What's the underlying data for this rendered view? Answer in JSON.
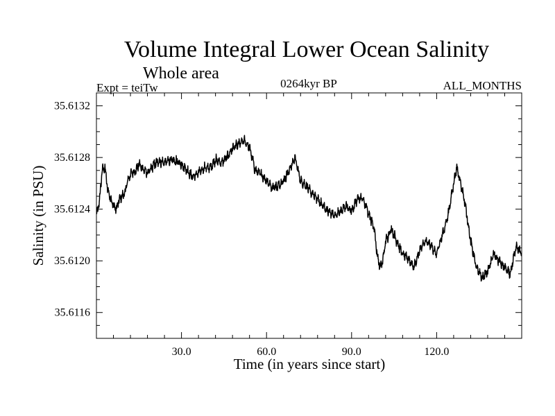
{
  "chart_data": {
    "type": "line",
    "title": "Volume Integral Lower Ocean Salinity",
    "subtitle": "Whole area",
    "experiment": "Expt = teiTw",
    "period": "0264kyr BP",
    "months": "ALL_MONTHS",
    "xlabel": "Time (in years since start)",
    "ylabel": "Salinity (in PSU)",
    "xlim": [
      0,
      150
    ],
    "ylim": [
      35.6114,
      35.6133
    ],
    "x_ticks": [
      30,
      60,
      90,
      120
    ],
    "x_tick_labels": [
      "30.0",
      "60.0",
      "90.0",
      "120.0"
    ],
    "y_ticks": [
      35.6116,
      35.612,
      35.6124,
      35.6128,
      35.6132
    ],
    "y_tick_labels": [
      "35.6116",
      "35.6120",
      "35.6124",
      "35.6128",
      "35.6132"
    ],
    "grid": false,
    "series": [
      {
        "name": "Salinity",
        "color": "#000000",
        "anchors": {
          "x": [
            0,
            1,
            2,
            3,
            4,
            5,
            6,
            7,
            8,
            9,
            10,
            11,
            12,
            13,
            14,
            15,
            16,
            17,
            18,
            19,
            20,
            22,
            24,
            26,
            28,
            30,
            32,
            34,
            36,
            38,
            40,
            42,
            44,
            46,
            48,
            50,
            52,
            54,
            56,
            58,
            60,
            62,
            64,
            66,
            68,
            70,
            72,
            74,
            76,
            78,
            80,
            82,
            84,
            86,
            88,
            90,
            92,
            94,
            96,
            98,
            99,
            100,
            101,
            102,
            104,
            106,
            108,
            110,
            112,
            114,
            116,
            118,
            120,
            122,
            124,
            126,
            127,
            128,
            130,
            132,
            134,
            136,
            138,
            140,
            142,
            144,
            146,
            148,
            150
          ],
          "y": [
            35.61235,
            35.61245,
            35.6127,
            35.61272,
            35.61255,
            35.61248,
            35.61243,
            35.6124,
            35.61247,
            35.6125,
            35.61252,
            35.61262,
            35.61267,
            35.61269,
            35.6127,
            35.61275,
            35.61272,
            35.6127,
            35.61268,
            35.6127,
            35.61274,
            35.61277,
            35.61276,
            35.61278,
            35.61277,
            35.61275,
            35.6127,
            35.61265,
            35.61268,
            35.61272,
            35.61272,
            35.61278,
            35.61276,
            35.6128,
            35.61287,
            35.6129,
            35.61293,
            35.61288,
            35.6127,
            35.61267,
            35.61262,
            35.61257,
            35.61258,
            35.61262,
            35.6127,
            35.6128,
            35.61262,
            35.61258,
            35.61252,
            35.61248,
            35.61242,
            35.61238,
            35.61235,
            35.61238,
            35.61243,
            35.61238,
            35.61248,
            35.61248,
            35.61237,
            35.61225,
            35.61205,
            35.61195,
            35.612,
            35.61215,
            35.61225,
            35.61215,
            35.61205,
            35.61202,
            35.61195,
            35.61208,
            35.61215,
            35.61212,
            35.61205,
            35.6122,
            35.61235,
            35.6126,
            35.61272,
            35.61265,
            35.61245,
            35.61215,
            35.61195,
            35.61187,
            35.61192,
            35.61205,
            35.612,
            35.61195,
            35.6119,
            35.61212,
            35.61205
          ]
        },
        "noise_amplitude": 8e-05,
        "resolution_years": 0.0833
      }
    ]
  }
}
